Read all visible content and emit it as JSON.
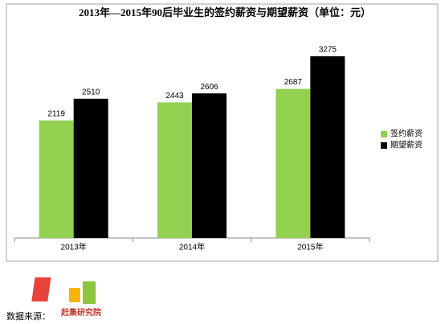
{
  "chart_data": {
    "type": "bar",
    "title": "2013年—2015年90后毕业生的签约薪资与期望薪资（单位：元）",
    "categories": [
      "2013年",
      "2014年",
      "2015年"
    ],
    "series": [
      {
        "name": "签约薪资",
        "color": "#92d050",
        "values": [
          2119,
          2443,
          2687
        ]
      },
      {
        "name": "期望薪资",
        "color": "#000000",
        "values": [
          2510,
          2606,
          3275
        ]
      }
    ],
    "ylim": [
      0,
      3500
    ],
    "legend": "right"
  },
  "footer": {
    "source_label": "数据来源：",
    "logo_text": "赶集研究院"
  }
}
